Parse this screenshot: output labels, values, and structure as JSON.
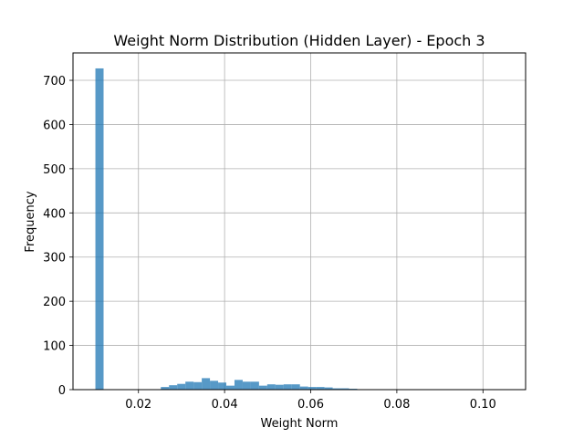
{
  "chart_data": {
    "type": "bar",
    "title": "Weight Norm Distribution (Hidden Layer) - Epoch 3",
    "xlabel": "Weight Norm",
    "ylabel": "Frequency",
    "xlim": [
      0.0048,
      0.1099
    ],
    "ylim": [
      0,
      762
    ],
    "xticks": [
      0.02,
      0.04,
      0.06,
      0.08,
      0.1
    ],
    "xtick_labels": [
      "0.02",
      "0.04",
      "0.06",
      "0.08",
      "0.10"
    ],
    "yticks": [
      0,
      100,
      200,
      300,
      400,
      500,
      600,
      700
    ],
    "ytick_labels": [
      "0",
      "100",
      "200",
      "300",
      "400",
      "500",
      "600",
      "700"
    ],
    "grid": true,
    "bar_color": "#1f77b4",
    "bar_alpha": 0.75,
    "bin_edges": [
      0.01,
      0.0119,
      0.0138,
      0.0157,
      0.0176,
      0.0195,
      0.0214,
      0.0233,
      0.0252,
      0.0271,
      0.029,
      0.0309,
      0.0328,
      0.0347,
      0.0366,
      0.0385,
      0.0404,
      0.0423,
      0.0442,
      0.0461,
      0.048,
      0.0499,
      0.0518,
      0.0537,
      0.0556,
      0.0575,
      0.0594,
      0.0613,
      0.0632,
      0.0651,
      0.067,
      0.0689,
      0.0708
    ],
    "values": [
      727,
      0,
      0,
      0,
      0,
      0,
      0,
      0,
      6,
      10,
      13,
      18,
      17,
      26,
      20,
      16,
      9,
      22,
      18,
      18,
      9,
      12,
      11,
      12,
      12,
      7,
      6,
      6,
      5,
      3,
      3,
      2
    ]
  }
}
